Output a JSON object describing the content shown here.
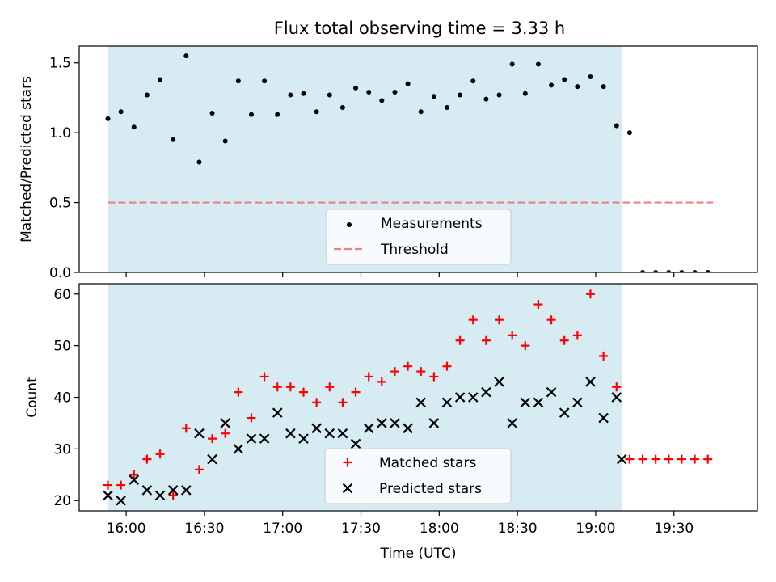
{
  "title": "Flux total observing time = 3.33 h",
  "colors": {
    "shade": "#add8e6",
    "measure": "#000000",
    "threshold": "#f08080",
    "matched": "#ff0000",
    "predicted": "#000000"
  },
  "chart_data": [
    {
      "type": "scatter",
      "panel": "top",
      "title": "Flux total observing time = 3.33 h",
      "xlabel": "",
      "ylabel": "Matched/Predicted stars",
      "xlim": [
        "15:42",
        "20:02"
      ],
      "ylim": [
        0,
        1.62
      ],
      "yticks": [
        0.0,
        0.5,
        1.0,
        1.5
      ],
      "ytick_labels": [
        "0.0",
        "0.5",
        "1.0",
        "1.5"
      ],
      "xticks": [
        "16:00",
        "16:30",
        "17:00",
        "17:30",
        "18:00",
        "18:30",
        "19:00",
        "19:30"
      ],
      "shaded_span": [
        "15:53",
        "19:10"
      ],
      "legend_position": "lower center",
      "legend": [
        "Measurements",
        "Threshold"
      ],
      "threshold": {
        "name": "Threshold",
        "y": 0.5,
        "x_range": [
          "15:53",
          "19:45"
        ]
      },
      "series": [
        {
          "name": "Measurements",
          "x": [
            "15:53",
            "15:58",
            "16:03",
            "16:08",
            "16:13",
            "16:18",
            "16:23",
            "16:28",
            "16:33",
            "16:38",
            "16:43",
            "16:48",
            "16:53",
            "16:58",
            "17:03",
            "17:08",
            "17:13",
            "17:18",
            "17:23",
            "17:28",
            "17:33",
            "17:38",
            "17:43",
            "17:48",
            "17:53",
            "17:58",
            "18:03",
            "18:08",
            "18:13",
            "18:18",
            "18:23",
            "18:28",
            "18:33",
            "18:38",
            "18:43",
            "18:48",
            "18:53",
            "18:58",
            "19:03",
            "19:08",
            "19:13",
            "19:18",
            "19:23",
            "19:28",
            "19:33",
            "19:38",
            "19:43"
          ],
          "y": [
            1.1,
            1.15,
            1.04,
            1.27,
            1.38,
            0.95,
            1.55,
            0.79,
            1.14,
            0.94,
            1.37,
            1.13,
            1.37,
            1.13,
            1.27,
            1.28,
            1.15,
            1.27,
            1.18,
            1.32,
            1.29,
            1.23,
            1.29,
            1.35,
            1.15,
            1.26,
            1.18,
            1.27,
            1.37,
            1.24,
            1.27,
            1.49,
            1.28,
            1.49,
            1.34,
            1.38,
            1.33,
            1.4,
            1.33,
            1.05,
            1.0,
            0,
            0,
            0,
            0,
            0,
            0
          ]
        }
      ]
    },
    {
      "type": "scatter",
      "panel": "bottom",
      "xlabel": "Time (UTC)",
      "ylabel": "Count",
      "xlim": [
        "15:42",
        "20:02"
      ],
      "ylim": [
        18,
        62
      ],
      "yticks": [
        20,
        30,
        40,
        50,
        60
      ],
      "ytick_labels": [
        "20",
        "30",
        "40",
        "50",
        "60"
      ],
      "xticks": [
        "16:00",
        "16:30",
        "17:00",
        "17:30",
        "18:00",
        "18:30",
        "19:00",
        "19:30"
      ],
      "shaded_span": [
        "15:53",
        "19:10"
      ],
      "legend_position": "lower center",
      "legend": [
        "Matched stars",
        "Predicted stars"
      ],
      "series": [
        {
          "name": "Matched stars",
          "marker": "+",
          "x": [
            "15:53",
            "15:58",
            "16:03",
            "16:08",
            "16:13",
            "16:18",
            "16:23",
            "16:28",
            "16:33",
            "16:38",
            "16:43",
            "16:48",
            "16:53",
            "16:58",
            "17:03",
            "17:08",
            "17:13",
            "17:18",
            "17:23",
            "17:28",
            "17:33",
            "17:38",
            "17:43",
            "17:48",
            "17:53",
            "17:58",
            "18:03",
            "18:08",
            "18:13",
            "18:18",
            "18:23",
            "18:28",
            "18:33",
            "18:38",
            "18:43",
            "18:48",
            "18:53",
            "18:58",
            "19:03",
            "19:08",
            "19:13",
            "19:18",
            "19:23",
            "19:28",
            "19:33",
            "19:38",
            "19:43"
          ],
          "y": [
            23,
            23,
            25,
            28,
            29,
            21,
            34,
            26,
            32,
            33,
            41,
            36,
            44,
            42,
            42,
            41,
            39,
            42,
            39,
            41,
            44,
            43,
            45,
            46,
            45,
            44,
            46,
            51,
            55,
            51,
            55,
            52,
            50,
            58,
            55,
            51,
            52,
            60,
            48,
            42,
            28,
            28,
            28,
            28,
            28,
            28,
            28
          ]
        },
        {
          "name": "Predicted stars",
          "marker": "x",
          "x": [
            "15:53",
            "15:58",
            "16:03",
            "16:08",
            "16:13",
            "16:18",
            "16:23",
            "16:28",
            "16:33",
            "16:38",
            "16:43",
            "16:48",
            "16:53",
            "16:58",
            "17:03",
            "17:08",
            "17:13",
            "17:18",
            "17:23",
            "17:28",
            "17:33",
            "17:38",
            "17:43",
            "17:48",
            "17:53",
            "17:58",
            "18:03",
            "18:08",
            "18:13",
            "18:18",
            "18:23",
            "18:28",
            "18:33",
            "18:38",
            "18:43",
            "18:48",
            "18:53",
            "18:58",
            "19:03",
            "19:08",
            "19:10"
          ],
          "y": [
            21,
            20,
            24,
            22,
            21,
            22,
            22,
            33,
            28,
            35,
            30,
            32,
            32,
            37,
            33,
            32,
            34,
            33,
            33,
            31,
            34,
            35,
            35,
            34,
            39,
            35,
            39,
            40,
            40,
            41,
            43,
            35,
            39,
            39,
            41,
            37,
            39,
            43,
            36,
            40,
            28
          ]
        }
      ]
    }
  ]
}
